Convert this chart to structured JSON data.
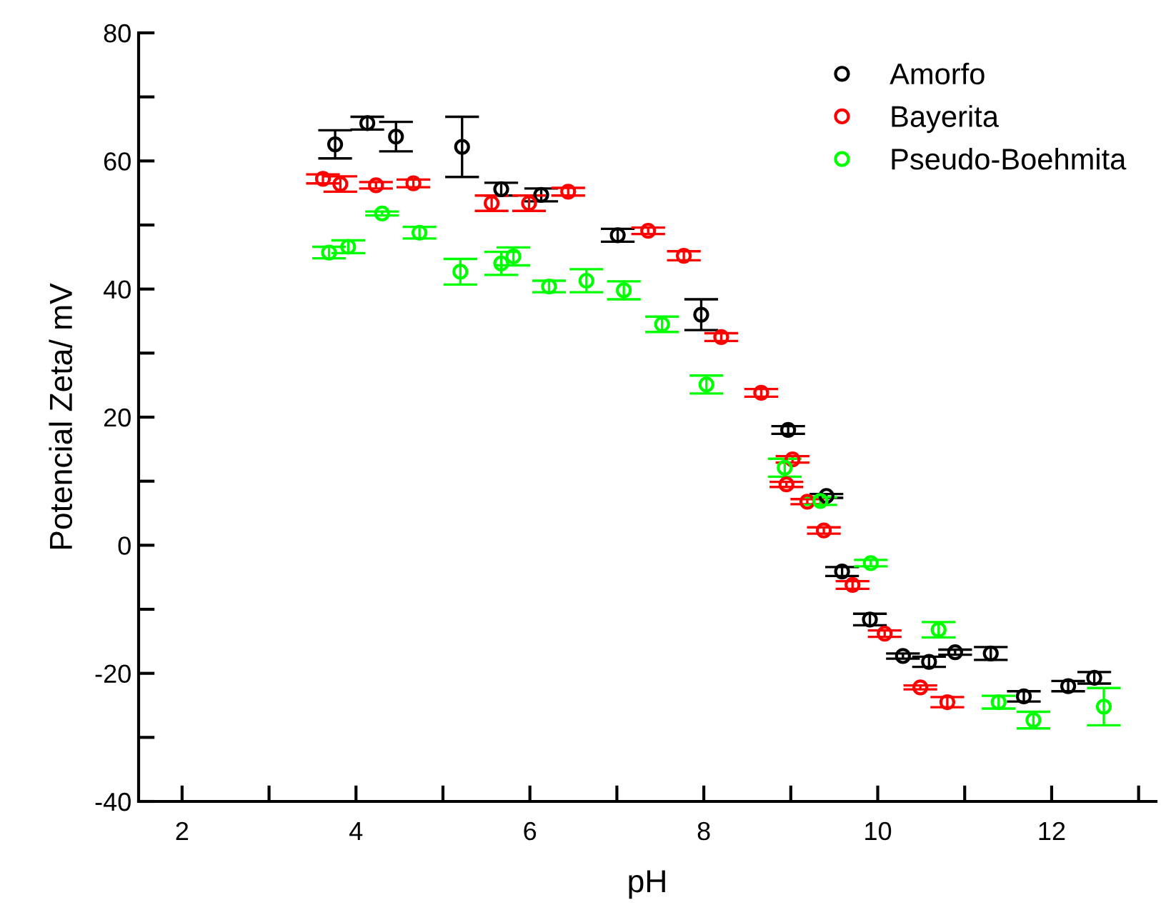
{
  "chart_data": {
    "type": "scatter",
    "xlabel": "pH",
    "ylabel": "Potencial Zeta/ mV",
    "xlim": [
      1.5,
      13.2
    ],
    "ylim": [
      -40,
      80
    ],
    "xticks": [
      2,
      {
        "value": 3,
        "label": null
      },
      4,
      {
        "value": 5,
        "label": null
      },
      6,
      {
        "value": 7,
        "label": null
      },
      8,
      {
        "value": 9,
        "label": null
      },
      10,
      {
        "value": 11,
        "label": null
      },
      12,
      {
        "value": 13,
        "label": null
      }
    ],
    "yticks": [
      -40,
      {
        "value": -30,
        "label": null
      },
      -20,
      {
        "value": -10,
        "label": null
      },
      0,
      {
        "value": 10,
        "label": null
      },
      20,
      {
        "value": 30,
        "label": null
      },
      40,
      {
        "value": 50,
        "label": null
      },
      60,
      {
        "value": 70,
        "label": null
      },
      80
    ],
    "grid": false,
    "legend": "top right",
    "marker": "circle",
    "series": [
      {
        "name": "Amorfo",
        "color": "#000000",
        "x": [
          3.76,
          4.13,
          4.46,
          5.22,
          5.67,
          6.13,
          7.01,
          7.97,
          8.97,
          9.41,
          9.59,
          9.91,
          10.29,
          10.59,
          10.89,
          11.3,
          11.68,
          12.19,
          12.49
        ],
        "values": [
          62.6,
          65.9,
          63.8,
          62.2,
          55.6,
          54.7,
          48.4,
          36.0,
          18.0,
          7.7,
          -4.1,
          -11.6,
          -17.3,
          -18.2,
          -16.7,
          -16.9,
          -23.6,
          -22.0,
          -20.7
        ],
        "errors": [
          2.2,
          1.0,
          2.3,
          4.7,
          1.0,
          1.0,
          1.0,
          2.4,
          0.6,
          0.3,
          0.7,
          0.9,
          0.4,
          0.8,
          0.4,
          1.0,
          0.8,
          0.8,
          0.9
        ]
      },
      {
        "name": "Bayerita",
        "color": "#ff0000",
        "x": [
          3.62,
          3.82,
          4.23,
          4.66,
          5.56,
          5.99,
          6.44,
          7.36,
          7.77,
          8.2,
          8.66,
          9.02,
          8.95,
          9.19,
          9.38,
          9.71,
          10.08,
          10.49,
          10.8
        ],
        "values": [
          57.2,
          56.4,
          56.2,
          56.5,
          53.4,
          53.4,
          55.2,
          49.1,
          45.2,
          32.5,
          23.8,
          13.4,
          9.5,
          6.8,
          2.3,
          -6.2,
          -13.8,
          -22.2,
          -24.5
        ],
        "errors": [
          0.7,
          1.2,
          0.5,
          0.6,
          1.2,
          1.2,
          0.6,
          0.5,
          0.7,
          0.6,
          0.6,
          0.5,
          0.4,
          0.4,
          0.5,
          0.6,
          0.5,
          0.3,
          0.8
        ]
      },
      {
        "name": "Pseudo-Boehmita",
        "color": "#00ff00",
        "x": [
          3.69,
          3.91,
          4.3,
          4.73,
          5.2,
          5.67,
          5.81,
          6.22,
          6.65,
          7.08,
          7.52,
          8.03,
          8.93,
          9.34,
          9.92,
          10.7,
          11.39,
          11.79,
          12.6
        ],
        "values": [
          45.7,
          46.6,
          51.8,
          48.8,
          42.7,
          44.0,
          45.1,
          40.4,
          41.3,
          39.8,
          34.5,
          25.1,
          12.1,
          6.9,
          -2.8,
          -13.2,
          -24.5,
          -27.3,
          -25.2
        ],
        "errors": [
          0.9,
          1.0,
          0.3,
          0.9,
          2.0,
          1.8,
          1.4,
          0.9,
          1.8,
          1.4,
          1.2,
          1.4,
          1.4,
          0.6,
          0.5,
          1.2,
          1.0,
          1.3,
          2.9
        ]
      }
    ]
  }
}
